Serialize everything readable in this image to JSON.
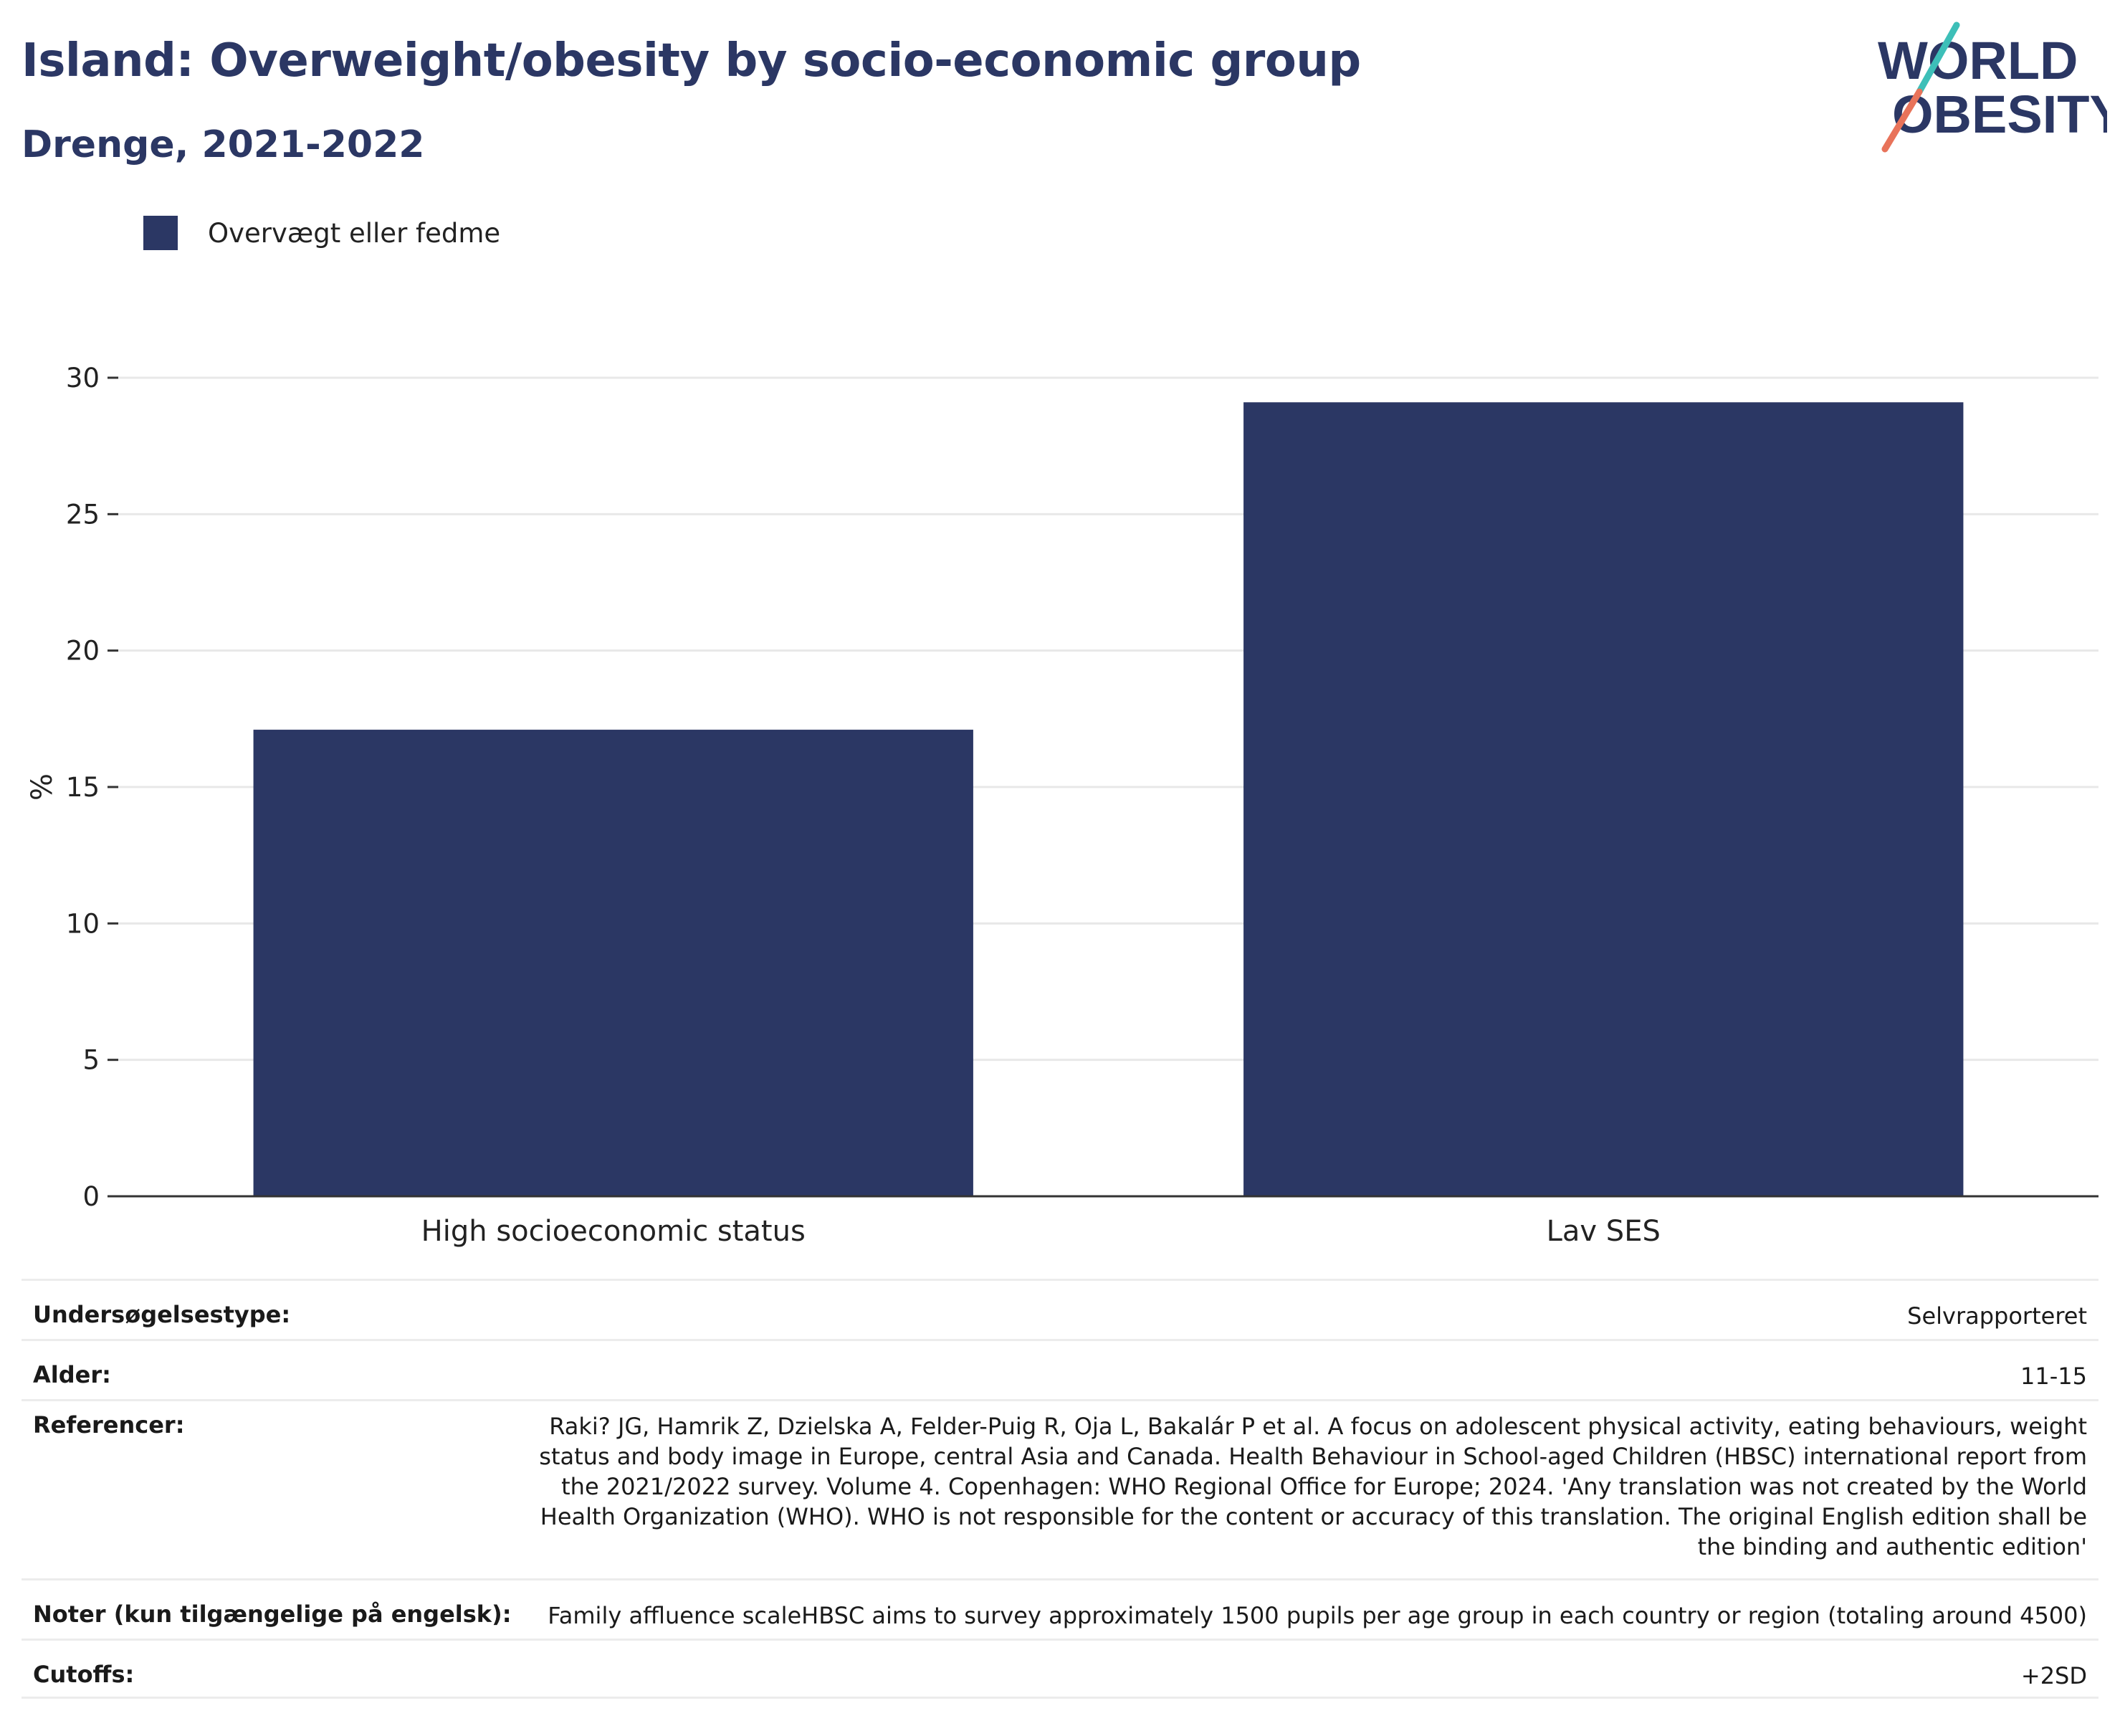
{
  "title": "Island: Overweight/obesity by socio-economic group",
  "subtitle": "Drenge, 2021-2022",
  "logo": {
    "line1": "WORLD",
    "line2": "OBESITY",
    "colors": {
      "text": "#2b3764",
      "slash_top": "#3dbfb8",
      "slash_bottom": "#e8735a"
    }
  },
  "legend": {
    "label": "Overvægt eller fedme",
    "color": "#2b3764"
  },
  "chart_data": {
    "type": "bar",
    "categories": [
      "High socioeconomic status",
      "Lav SES"
    ],
    "series": [
      {
        "name": "Overvægt eller fedme",
        "values": [
          17.1,
          29.1
        ],
        "color": "#2b3764"
      }
    ],
    "ylabel": "%",
    "ylim": [
      0,
      30
    ],
    "yticks": [
      0,
      5,
      10,
      15,
      20,
      25,
      30
    ],
    "grid": true
  },
  "meta": {
    "survey_type": {
      "label": "Undersøgelsestype:",
      "value": "Selvrapporteret"
    },
    "age": {
      "label": "Alder:",
      "value": "11-15"
    },
    "references": {
      "label": "Referencer:",
      "value": "Raki? JG, Hamrik Z, Dzielska A, Felder-Puig R, Oja L, Bakalár P et al. A focus on adolescent physical activity, eating behaviours, weight status and body image in Europe, central Asia and Canada. Health Behaviour in School-aged Children (HBSC) international report from the 2021/2022 survey. Volume 4. Copenhagen: WHO Regional Office for Europe; 2024. 'Any translation was not created by the World Health Organization (WHO). WHO is not responsible for the content or accuracy of this translation. The original English edition shall be the binding and authentic edition'"
    },
    "notes": {
      "label": "Noter (kun tilgængelige på engelsk):",
      "value": "Family affluence scaleHBSC aims to survey approximately 1500 pupils per age group in each country or region (totaling around 4500)"
    },
    "cutoffs": {
      "label": "Cutoffs:",
      "value": "+2SD"
    }
  }
}
